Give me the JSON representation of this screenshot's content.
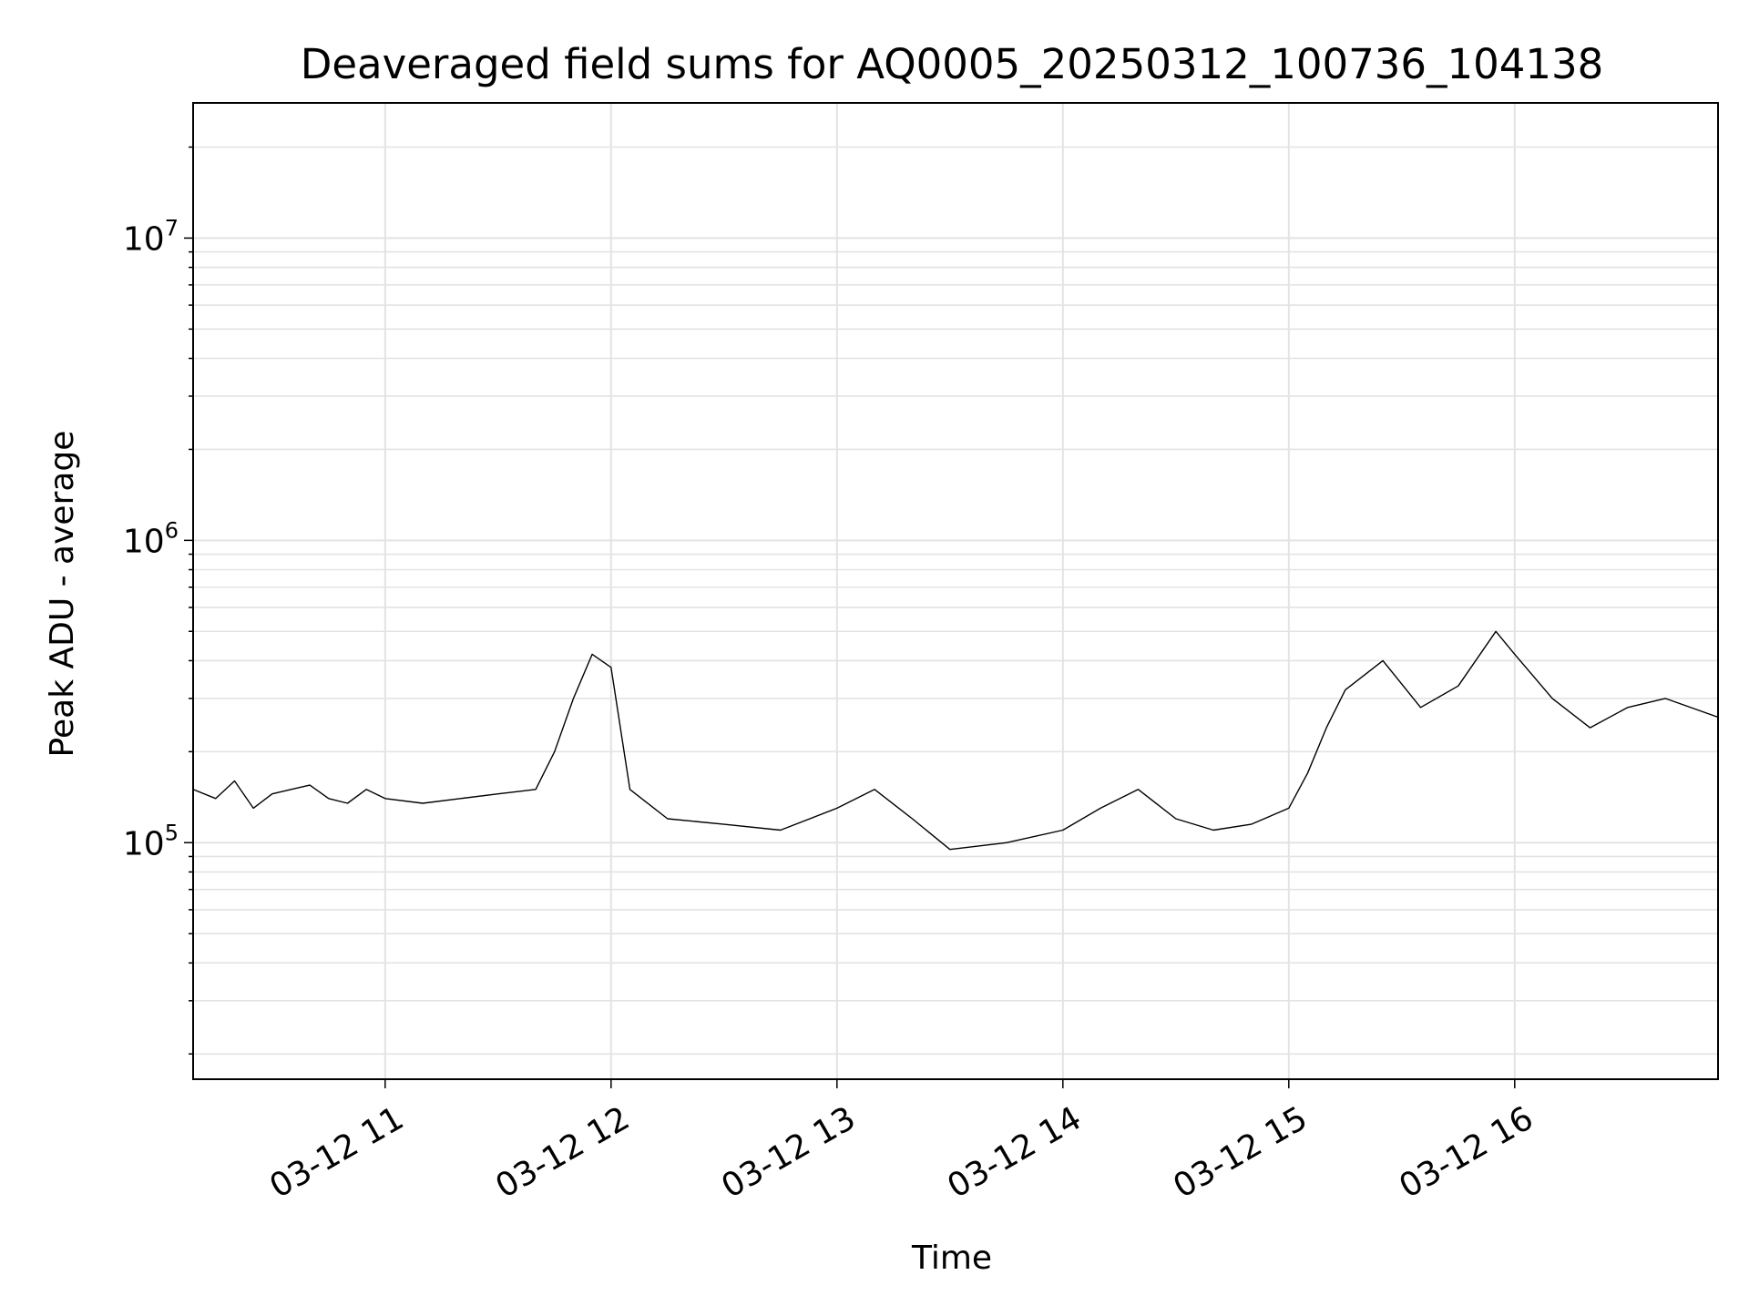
{
  "chart_data": {
    "type": "line",
    "title": "Deaveraged field sums for AQ0005_20250312_100736_104138",
    "xlabel": "Time",
    "ylabel": "Peak ADU - average",
    "yscale": "log",
    "xlim": [
      "2025-03-12T10:09",
      "2025-03-12T16:54"
    ],
    "ylim": [
      16500,
      28000000
    ],
    "grid": true,
    "line_color": "#000000",
    "grid_color": "#e3e3e3",
    "x_ticks": [
      {
        "value": "2025-03-12T11:00",
        "label": "03-12 11"
      },
      {
        "value": "2025-03-12T12:00",
        "label": "03-12 12"
      },
      {
        "value": "2025-03-12T13:00",
        "label": "03-12 13"
      },
      {
        "value": "2025-03-12T14:00",
        "label": "03-12 14"
      },
      {
        "value": "2025-03-12T15:00",
        "label": "03-12 15"
      },
      {
        "value": "2025-03-12T16:00",
        "label": "03-12 16"
      }
    ],
    "y_ticks": [
      {
        "value": 100000,
        "base": "10",
        "exp": "5"
      },
      {
        "value": 1000000,
        "base": "10",
        "exp": "6"
      },
      {
        "value": 10000000,
        "base": "10",
        "exp": "7"
      }
    ],
    "series": [
      {
        "points": [
          [
            "2025-03-12T10:09",
            150000
          ],
          [
            "2025-03-12T10:15",
            140000
          ],
          [
            "2025-03-12T10:20",
            160000
          ],
          [
            "2025-03-12T10:25",
            130000
          ],
          [
            "2025-03-12T10:30",
            145000
          ],
          [
            "2025-03-12T10:35",
            150000
          ],
          [
            "2025-03-12T10:40",
            155000
          ],
          [
            "2025-03-12T10:45",
            140000
          ],
          [
            "2025-03-12T10:50",
            135000
          ],
          [
            "2025-03-12T10:55",
            150000
          ],
          [
            "2025-03-12T11:00",
            140000
          ],
          [
            "2025-03-12T11:10",
            135000
          ],
          [
            "2025-03-12T11:20",
            140000
          ],
          [
            "2025-03-12T11:30",
            145000
          ],
          [
            "2025-03-12T11:40",
            150000
          ],
          [
            "2025-03-12T11:45",
            200000
          ],
          [
            "2025-03-12T11:50",
            300000
          ],
          [
            "2025-03-12T11:55",
            420000
          ],
          [
            "2025-03-12T12:00",
            380000
          ],
          [
            "2025-03-12T12:05",
            150000
          ],
          [
            "2025-03-12T12:15",
            120000
          ],
          [
            "2025-03-12T12:30",
            115000
          ],
          [
            "2025-03-12T12:45",
            110000
          ],
          [
            "2025-03-12T13:00",
            130000
          ],
          [
            "2025-03-12T13:10",
            150000
          ],
          [
            "2025-03-12T13:20",
            120000
          ],
          [
            "2025-03-12T13:30",
            95000
          ],
          [
            "2025-03-12T13:45",
            100000
          ],
          [
            "2025-03-12T14:00",
            110000
          ],
          [
            "2025-03-12T14:10",
            130000
          ],
          [
            "2025-03-12T14:20",
            150000
          ],
          [
            "2025-03-12T14:30",
            120000
          ],
          [
            "2025-03-12T14:40",
            110000
          ],
          [
            "2025-03-12T14:50",
            115000
          ],
          [
            "2025-03-12T15:00",
            130000
          ],
          [
            "2025-03-12T15:05",
            170000
          ],
          [
            "2025-03-12T15:10",
            240000
          ],
          [
            "2025-03-12T15:15",
            320000
          ],
          [
            "2025-03-12T15:25",
            400000
          ],
          [
            "2025-03-12T15:35",
            280000
          ],
          [
            "2025-03-12T15:45",
            330000
          ],
          [
            "2025-03-12T15:55",
            500000
          ],
          [
            "2025-03-12T16:00",
            420000
          ],
          [
            "2025-03-12T16:10",
            300000
          ],
          [
            "2025-03-12T16:20",
            240000
          ],
          [
            "2025-03-12T16:30",
            280000
          ],
          [
            "2025-03-12T16:40",
            300000
          ],
          [
            "2025-03-12T16:54",
            260000
          ]
        ]
      }
    ]
  }
}
